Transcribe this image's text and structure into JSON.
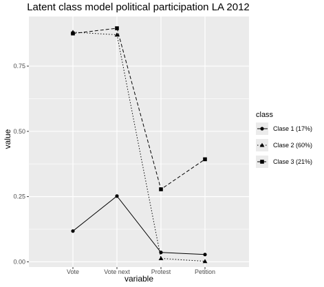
{
  "chart_data": {
    "type": "line",
    "title": "Latent class model political participation LA 2012",
    "xlabel": "variable",
    "ylabel": "value",
    "categories": [
      "Vote",
      "Vote next",
      "Protest",
      "Petition"
    ],
    "ylim": [
      -0.02,
      0.94
    ],
    "yticks": [
      0.0,
      0.25,
      0.5,
      0.75
    ],
    "ytick_labels": [
      "0.00",
      "0.25",
      "0.50",
      "0.75"
    ],
    "grid": true,
    "legend": {
      "title": "class",
      "placement": "right"
    },
    "series": [
      {
        "name": "Clase 1 (17%)",
        "linetype": "solid",
        "marker": "circle",
        "values": [
          0.118,
          0.252,
          0.036,
          0.028
        ]
      },
      {
        "name": "Clase 2 (60%)",
        "linetype": "dotted",
        "marker": "triangle",
        "values": [
          0.88,
          0.87,
          0.013,
          0.002
        ]
      },
      {
        "name": "Clase 3 (21%)",
        "linetype": "dashed",
        "marker": "square",
        "values": [
          0.875,
          0.895,
          0.278,
          0.393
        ]
      }
    ],
    "colors": {
      "panel": "#ebebeb",
      "grid": "#ffffff",
      "line": "#000000"
    }
  }
}
